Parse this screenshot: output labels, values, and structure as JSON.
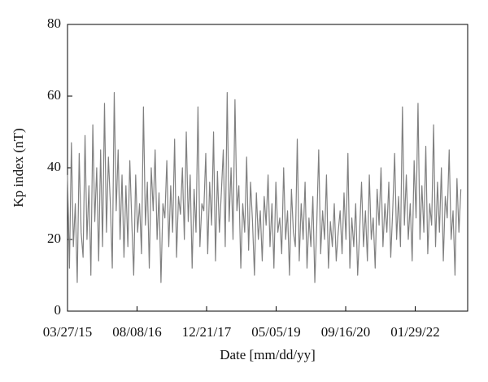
{
  "chart_data": {
    "type": "line",
    "ylabel": "Kp index (nT)",
    "xlabel": "Date [mm/dd/yy]",
    "color": "#808080",
    "xlim": [
      0,
      2877
    ],
    "ylim": [
      0,
      80
    ],
    "yticks": [
      0,
      20,
      40,
      60,
      80
    ],
    "xticks": [
      {
        "value": 0,
        "label": "03/27/15"
      },
      {
        "value": 500,
        "label": "08/08/16"
      },
      {
        "value": 1000,
        "label": "12/21/17"
      },
      {
        "value": 1500,
        "label": "05/05/19"
      },
      {
        "value": 2000,
        "label": "09/16/20"
      },
      {
        "value": 2500,
        "label": "01/29/22"
      }
    ],
    "x": [
      0,
      14,
      28,
      42,
      56,
      70,
      84,
      98,
      112,
      126,
      140,
      154,
      168,
      182,
      196,
      210,
      224,
      238,
      252,
      266,
      280,
      294,
      308,
      322,
      336,
      350,
      364,
      378,
      392,
      406,
      420,
      434,
      448,
      462,
      476,
      490,
      504,
      518,
      532,
      546,
      560,
      574,
      588,
      602,
      616,
      630,
      644,
      658,
      672,
      686,
      700,
      714,
      728,
      742,
      756,
      770,
      784,
      798,
      812,
      826,
      840,
      854,
      868,
      882,
      896,
      910,
      924,
      938,
      952,
      966,
      980,
      994,
      1008,
      1022,
      1036,
      1050,
      1064,
      1078,
      1092,
      1106,
      1120,
      1134,
      1148,
      1162,
      1176,
      1190,
      1204,
      1218,
      1232,
      1246,
      1260,
      1274,
      1288,
      1302,
      1316,
      1330,
      1344,
      1358,
      1372,
      1386,
      1400,
      1414,
      1428,
      1442,
      1456,
      1470,
      1484,
      1498,
      1512,
      1526,
      1540,
      1554,
      1568,
      1582,
      1596,
      1610,
      1624,
      1638,
      1652,
      1666,
      1680,
      1694,
      1708,
      1722,
      1736,
      1750,
      1764,
      1778,
      1792,
      1806,
      1820,
      1834,
      1848,
      1862,
      1876,
      1890,
      1904,
      1918,
      1932,
      1946,
      1960,
      1974,
      1988,
      2002,
      2016,
      2030,
      2044,
      2058,
      2072,
      2086,
      2100,
      2114,
      2128,
      2142,
      2156,
      2170,
      2184,
      2198,
      2212,
      2226,
      2240,
      2254,
      2268,
      2282,
      2296,
      2310,
      2324,
      2338,
      2352,
      2366,
      2380,
      2394,
      2408,
      2422,
      2436,
      2450,
      2464,
      2478,
      2492,
      2506,
      2520,
      2534,
      2548,
      2562,
      2576,
      2590,
      2604,
      2618,
      2632,
      2646,
      2660,
      2674,
      2688,
      2702,
      2716,
      2730,
      2744,
      2758,
      2772,
      2786,
      2800,
      2814,
      2828
    ],
    "values": [
      38,
      12,
      47,
      18,
      30,
      8,
      44,
      22,
      15,
      49,
      20,
      35,
      10,
      52,
      25,
      40,
      14,
      45,
      18,
      58,
      22,
      43,
      30,
      12,
      61,
      28,
      45,
      20,
      38,
      15,
      35,
      18,
      42,
      25,
      10,
      38,
      22,
      30,
      16,
      57,
      24,
      36,
      12,
      40,
      28,
      45,
      20,
      33,
      8,
      30,
      26,
      42,
      18,
      35,
      22,
      48,
      15,
      32,
      27,
      40,
      20,
      50,
      25,
      38,
      12,
      34,
      22,
      57,
      18,
      30,
      28,
      44,
      16,
      36,
      24,
      50,
      14,
      39,
      22,
      33,
      45,
      18,
      61,
      25,
      40,
      20,
      59,
      28,
      35,
      12,
      30,
      22,
      43,
      17,
      36,
      25,
      10,
      33,
      20,
      28,
      14,
      32,
      24,
      38,
      18,
      30,
      12,
      36,
      22,
      26,
      16,
      40,
      20,
      28,
      10,
      34,
      22,
      18,
      48,
      14,
      30,
      20,
      36,
      12,
      26,
      18,
      32,
      8,
      24,
      45,
      16,
      28,
      20,
      38,
      12,
      25,
      18,
      30,
      14,
      22,
      28,
      16,
      33,
      20,
      44,
      12,
      26,
      18,
      30,
      10,
      22,
      36,
      18,
      28,
      14,
      38,
      20,
      26,
      12,
      34,
      24,
      40,
      18,
      30,
      22,
      36,
      15,
      28,
      44,
      20,
      32,
      18,
      57,
      24,
      38,
      20,
      30,
      14,
      42,
      26,
      58,
      20,
      35,
      22,
      46,
      16,
      30,
      24,
      52,
      18,
      36,
      22,
      40,
      14,
      32,
      26,
      45,
      20,
      28,
      10,
      37,
      22,
      34
    ]
  }
}
